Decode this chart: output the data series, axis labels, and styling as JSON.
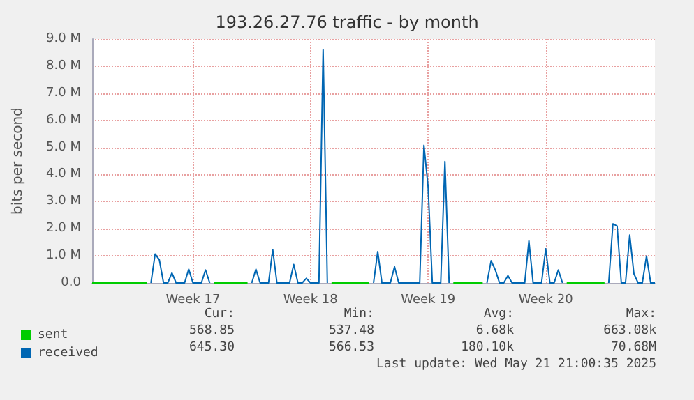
{
  "chart_data": {
    "type": "line",
    "title": "193.26.27.76 traffic - by month",
    "ylabel": "bits per second",
    "categories": [
      null,
      null,
      null,
      null,
      null,
      null,
      null,
      null,
      null,
      null,
      null,
      null,
      null,
      null,
      null,
      null,
      null,
      null,
      null,
      null,
      null,
      null,
      null,
      null,
      "Week 17",
      null,
      null,
      null,
      null,
      null,
      null,
      null,
      null,
      null,
      null,
      null,
      null,
      null,
      null,
      null,
      null,
      null,
      null,
      null,
      null,
      null,
      null,
      null,
      null,
      null,
      null,
      null,
      "Week 18",
      null,
      null,
      null,
      null,
      null,
      null,
      null,
      null,
      null,
      null,
      null,
      null,
      null,
      null,
      null,
      null,
      null,
      null,
      null,
      null,
      null,
      null,
      null,
      null,
      null,
      null,
      null,
      "Week 19",
      null,
      null,
      null,
      null,
      null,
      null,
      null,
      null,
      null,
      null,
      null,
      null,
      null,
      null,
      null,
      null,
      null,
      null,
      null,
      null,
      null,
      null,
      null,
      null,
      null,
      null,
      null,
      "Week 20",
      null,
      null,
      null,
      null,
      null,
      null,
      null,
      null,
      null,
      null,
      null,
      null,
      null,
      null,
      null,
      null,
      null,
      null,
      null,
      null,
      null,
      null,
      null,
      null,
      null,
      null
    ],
    "ylim": [
      0,
      9000000
    ],
    "yticks": [
      {
        "value": 0,
        "label": "0.0"
      },
      {
        "value": 1000000,
        "label": "1.0 M"
      },
      {
        "value": 2000000,
        "label": "2.0 M"
      },
      {
        "value": 3000000,
        "label": "3.0 M"
      },
      {
        "value": 4000000,
        "label": "4.0 M"
      },
      {
        "value": 5000000,
        "label": "5.0 M"
      },
      {
        "value": 6000000,
        "label": "6.0 M"
      },
      {
        "value": 7000000,
        "label": "7.0 M"
      },
      {
        "value": 8000000,
        "label": "8.0 M"
      },
      {
        "value": 9000000,
        "label": "9.0 M"
      }
    ],
    "grid": true,
    "legend": "bottom left",
    "marker": "none",
    "line_style": "solid",
    "series": [
      {
        "name": "sent",
        "color": "#00cc00",
        "values": [
          0,
          0,
          0,
          0,
          0,
          0,
          0,
          0,
          0,
          0,
          0,
          0,
          0,
          0,
          null,
          null,
          null,
          null,
          null,
          null,
          null,
          null,
          null,
          null,
          null,
          null,
          null,
          null,
          null,
          0,
          0,
          0,
          0,
          0,
          0,
          0,
          0,
          0,
          null,
          null,
          null,
          null,
          null,
          null,
          null,
          null,
          null,
          null,
          null,
          null,
          null,
          null,
          null,
          null,
          null,
          null,
          null,
          0,
          0,
          0,
          0,
          0,
          0,
          0,
          0,
          0,
          0,
          null,
          null,
          null,
          null,
          null,
          null,
          null,
          null,
          null,
          null,
          null,
          null,
          null,
          null,
          null,
          null,
          null,
          null,
          null,
          0,
          0,
          0,
          0,
          0,
          0,
          0,
          0,
          null,
          null,
          null,
          null,
          null,
          null,
          null,
          null,
          null,
          null,
          null,
          null,
          null,
          null,
          null,
          null,
          null,
          null,
          null,
          0,
          0,
          0,
          0,
          0,
          0,
          0,
          0,
          0,
          0,
          null,
          null,
          null,
          null,
          null,
          null,
          null,
          null,
          null,
          null,
          null,
          null
        ]
      },
      {
        "name": "received",
        "color": "#0066b3",
        "values": [
          null,
          null,
          null,
          null,
          null,
          null,
          null,
          null,
          null,
          null,
          null,
          null,
          null,
          null,
          0,
          1070000,
          850000,
          0,
          0,
          370000,
          0,
          0,
          0,
          510000,
          0,
          0,
          0,
          480000,
          0,
          null,
          null,
          null,
          null,
          null,
          null,
          null,
          null,
          null,
          0,
          510000,
          0,
          0,
          0,
          1230000,
          0,
          0,
          0,
          0,
          680000,
          0,
          0,
          170000,
          0,
          0,
          0,
          8600000,
          0,
          null,
          null,
          null,
          null,
          null,
          null,
          null,
          null,
          null,
          null,
          0,
          1160000,
          0,
          0,
          0,
          600000,
          0,
          0,
          0,
          0,
          0,
          0,
          5080000,
          3540000,
          0,
          0,
          0,
          4480000,
          0,
          null,
          null,
          null,
          null,
          null,
          null,
          null,
          null,
          0,
          820000,
          480000,
          0,
          0,
          270000,
          0,
          0,
          0,
          0,
          1550000,
          0,
          0,
          0,
          1260000,
          0,
          0,
          480000,
          0,
          null,
          null,
          null,
          null,
          null,
          null,
          null,
          null,
          null,
          null,
          0,
          2180000,
          2100000,
          0,
          0,
          1770000,
          340000,
          0,
          0,
          990000,
          0,
          0
        ]
      }
    ],
    "annotations": [
      "Cur:",
      "Min:",
      "Avg:",
      "Max:",
      "568.85",
      "537.48",
      "6.68k",
      "663.08k",
      "645.30",
      "566.53",
      "180.10k",
      "70.68M",
      "Last update: Wed May 21 21:00:35 2025"
    ]
  }
}
